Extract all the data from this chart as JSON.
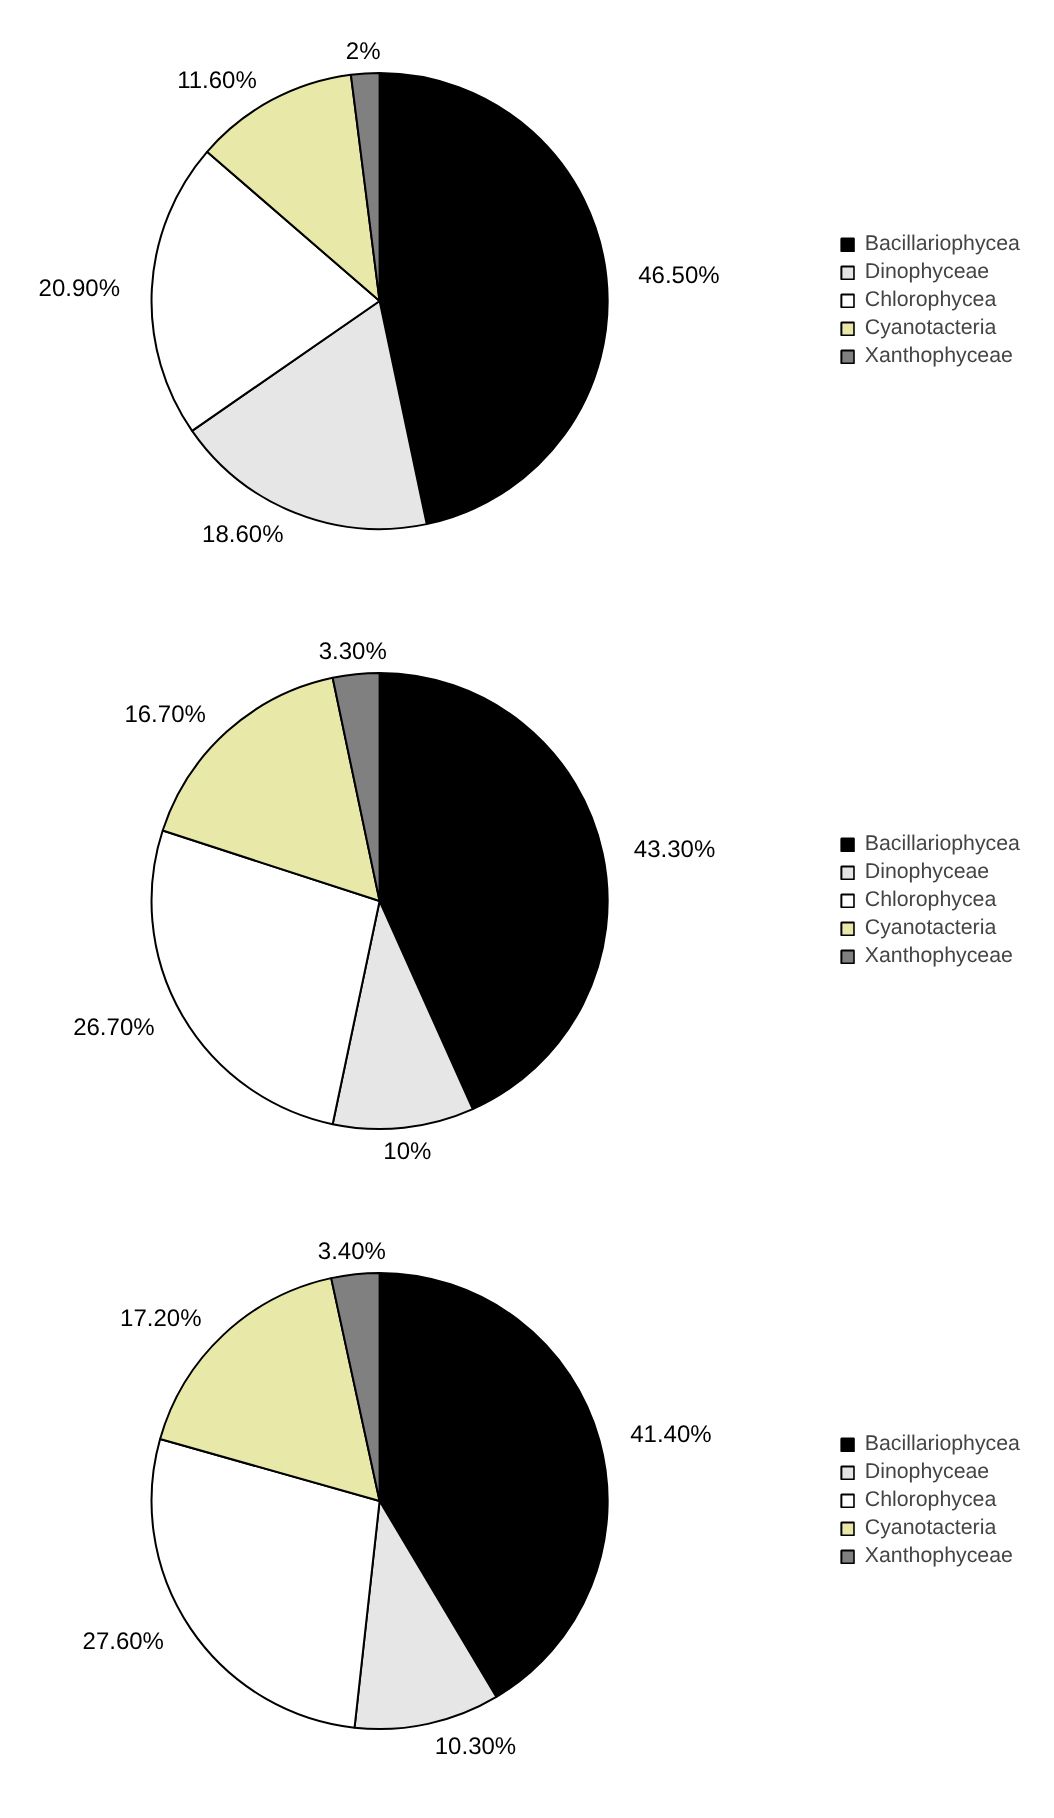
{
  "chart_data": [
    {
      "type": "pie",
      "categories": [
        "Bacillariophycea",
        "Dinophyceae",
        "Chlorophycea",
        "Cyanotacteria",
        "Xanthophyceae"
      ],
      "values": [
        46.5,
        18.6,
        20.9,
        11.6,
        2
      ],
      "value_labels": [
        "46.50%",
        "18.60%",
        "20.90%",
        "11.60%",
        "2%"
      ],
      "colors": [
        "#000000",
        "#e6e6e6",
        "#ffffff",
        "#e8e8a8",
        "#808080"
      ],
      "legend": "right"
    },
    {
      "type": "pie",
      "categories": [
        "Bacillariophycea",
        "Dinophyceae",
        "Chlorophycea",
        "Cyanotacteria",
        "Xanthophyceae"
      ],
      "values": [
        43.3,
        10,
        26.7,
        16.7,
        3.3
      ],
      "value_labels": [
        "43.30%",
        "10%",
        "26.70%",
        "16.70%",
        "3.30%"
      ],
      "colors": [
        "#000000",
        "#e6e6e6",
        "#ffffff",
        "#e8e8a8",
        "#808080"
      ],
      "legend": "right"
    },
    {
      "type": "pie",
      "categories": [
        "Bacillariophycea",
        "Dinophyceae",
        "Chlorophycea",
        "Cyanotacteria",
        "Xanthophyceae"
      ],
      "values": [
        41.4,
        10.3,
        27.6,
        17.2,
        3.4
      ],
      "value_labels": [
        "41.40%",
        "10.30%",
        "27.60%",
        "17.20%",
        "3.40%"
      ],
      "colors": [
        "#000000",
        "#e6e6e6",
        "#ffffff",
        "#e8e8a8",
        "#808080"
      ],
      "legend": "right"
    }
  ]
}
